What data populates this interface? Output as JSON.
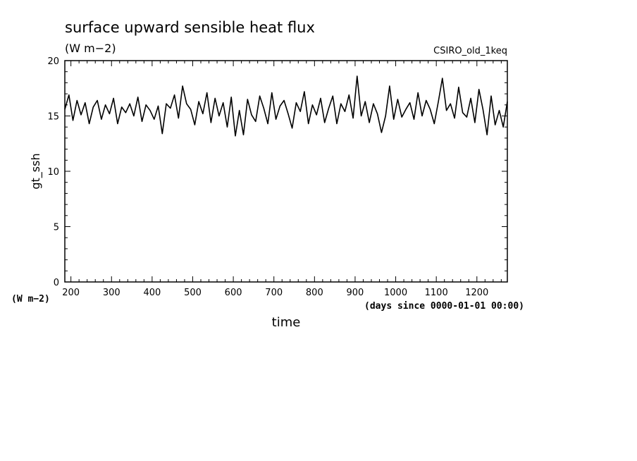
{
  "chart_data": {
    "type": "line",
    "title": "surface upward sensible heat flux",
    "units_label": "(W m−2)",
    "dataset_label": "CSIRO_old_1keq",
    "xlabel": "time",
    "x_units": "(days since 0000-01-01 00:00)",
    "ylabel": "gt_ssh",
    "y_units": "(W m−2)",
    "xlim": [
      185,
      1275
    ],
    "ylim": [
      0,
      20
    ],
    "x_ticks": [
      "200",
      "300",
      "400",
      "500",
      "600",
      "700",
      "800",
      "900",
      "1000",
      "1100",
      "1200"
    ],
    "y_ticks": [
      "0",
      "5",
      "10",
      "15",
      "20"
    ],
    "grid": false,
    "series": [
      {
        "color": "#000000",
        "x": [
          185,
          195,
          205,
          215,
          225,
          235,
          245,
          255,
          265,
          275,
          285,
          295,
          305,
          315,
          325,
          335,
          345,
          355,
          365,
          375,
          385,
          395,
          405,
          415,
          425,
          435,
          445,
          455,
          465,
          475,
          485,
          495,
          505,
          515,
          525,
          535,
          545,
          555,
          565,
          575,
          585,
          595,
          605,
          615,
          625,
          635,
          645,
          655,
          665,
          675,
          685,
          695,
          705,
          715,
          725,
          735,
          745,
          755,
          765,
          775,
          785,
          795,
          805,
          815,
          825,
          835,
          845,
          855,
          865,
          875,
          885,
          895,
          905,
          915,
          925,
          935,
          945,
          955,
          965,
          975,
          985,
          995,
          1005,
          1015,
          1025,
          1035,
          1045,
          1055,
          1065,
          1075,
          1085,
          1095,
          1105,
          1115,
          1125,
          1135,
          1145,
          1155,
          1165,
          1175,
          1185,
          1195,
          1205,
          1215,
          1225,
          1235,
          1245,
          1255,
          1265,
          1275
        ],
        "values": [
          15.6,
          16.9,
          14.6,
          16.4,
          15.1,
          16.2,
          14.3,
          15.8,
          16.4,
          14.7,
          16.0,
          15.2,
          16.6,
          14.3,
          15.8,
          15.3,
          16.1,
          15.0,
          16.7,
          14.5,
          16.0,
          15.5,
          14.7,
          15.9,
          13.4,
          16.1,
          15.7,
          16.9,
          14.8,
          17.7,
          16.1,
          15.6,
          14.2,
          16.3,
          15.2,
          17.1,
          14.4,
          16.6,
          15.0,
          16.2,
          14.0,
          16.7,
          13.2,
          15.5,
          13.3,
          16.5,
          15.1,
          14.5,
          16.8,
          15.7,
          14.3,
          17.1,
          14.7,
          15.9,
          16.4,
          15.2,
          13.9,
          16.2,
          15.4,
          17.2,
          14.3,
          16.0,
          15.1,
          16.6,
          14.4,
          15.7,
          16.8,
          14.3,
          16.1,
          15.4,
          16.9,
          14.8,
          18.6,
          15.0,
          16.3,
          14.4,
          16.1,
          15.2,
          13.5,
          15.0,
          17.7,
          14.7,
          16.5,
          14.9,
          15.6,
          16.2,
          14.7,
          17.1,
          15.0,
          16.4,
          15.6,
          14.3,
          16.3,
          18.4,
          15.5,
          16.1,
          14.8,
          17.6,
          15.3,
          14.9,
          16.6,
          14.4,
          17.4,
          15.6,
          13.3,
          16.8,
          14.2,
          15.5,
          14.0,
          16.3
        ]
      }
    ]
  }
}
